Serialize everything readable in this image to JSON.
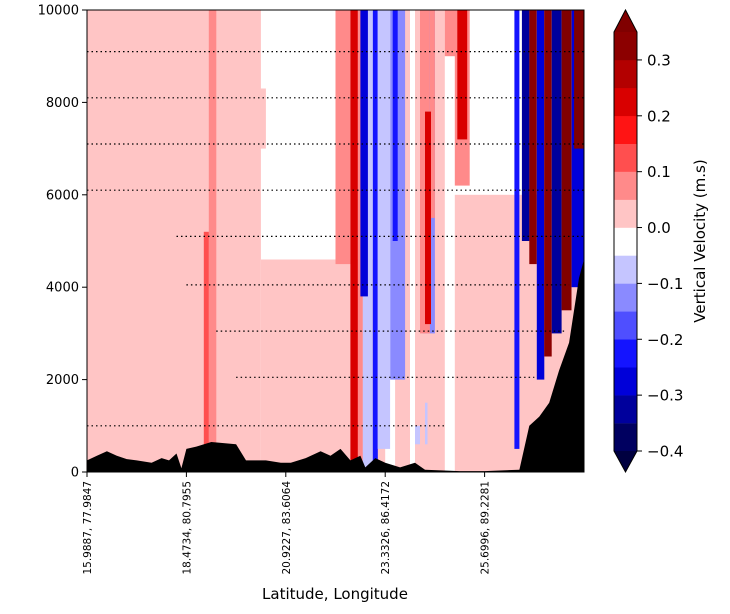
{
  "chart_data": {
    "type": "heatmap",
    "title": "",
    "xlabel": "Latitude, Longitude",
    "ylabel": "",
    "ylim": [
      0,
      10000
    ],
    "y_ticks": [
      "0",
      "2000",
      "4000",
      "6000",
      "8000",
      "10000"
    ],
    "y_tick_values": [
      0,
      2000,
      4000,
      6000,
      8000,
      10000
    ],
    "x_ticks": [
      "15.9887, 77.9847",
      "18.4734, 80.7955",
      "20.9227, 83.6064",
      "23.3326, 86.4172",
      "25.6996, 89.2281"
    ],
    "x_tick_fractions": [
      0.0,
      0.2,
      0.4,
      0.6,
      0.8
    ],
    "colorbar": {
      "label": "Vertical Velocity (m.s)",
      "extend": "both",
      "levels": [
        -0.4,
        -0.35,
        -0.3,
        -0.25,
        -0.2,
        -0.15,
        -0.1,
        -0.05,
        0.0,
        0.05,
        0.1,
        0.15,
        0.2,
        0.25,
        0.3,
        0.35
      ],
      "ticks": [
        "0.3",
        "0.2",
        "0.1",
        "0.0",
        "−0.1",
        "−0.2",
        "−0.3",
        "−0.4"
      ],
      "tick_values": [
        0.3,
        0.2,
        0.1,
        0.0,
        -0.1,
        -0.2,
        -0.3,
        -0.4
      ],
      "colors": [
        "#000060",
        "#00009c",
        "#0000d9",
        "#1414ff",
        "#4f4fff",
        "#8a8aff",
        "#c5c5ff",
        "#ffffff",
        "#ffc5c5",
        "#ff8a8a",
        "#ff4f4f",
        "#ff1414",
        "#d90000",
        "#b30000",
        "#8c0000"
      ],
      "under_color": "#000040",
      "over_color": "#800000"
    },
    "background_value": 0.0,
    "field_features": [
      {
        "x_frac": 0.0,
        "x_end_frac": 0.35,
        "y_bottom": 0,
        "y_top": 10000,
        "value": 0.03
      },
      {
        "x_frac": 0.35,
        "x_end_frac": 0.6,
        "y_bottom": 0,
        "y_top": 4600,
        "value": 0.03
      },
      {
        "x_frac": 0.0,
        "x_end_frac": 0.36,
        "y_bottom": 7000,
        "y_top": 8300,
        "value": 0.03
      },
      {
        "x_frac": 0.74,
        "x_end_frac": 1.0,
        "y_bottom": 0,
        "y_top": 6000,
        "value": 0.03
      },
      {
        "x_frac": 0.19,
        "x_end_frac": 0.22,
        "y_bottom": 0,
        "y_top": 10000,
        "value": 0.03
      },
      {
        "x_frac": 0.245,
        "x_end_frac": 0.26,
        "y_bottom": 0,
        "y_top": 10000,
        "value": 0.06
      },
      {
        "x_frac": 0.62,
        "x_end_frac": 0.65,
        "y_bottom": 0,
        "y_top": 10000,
        "value": 0.03
      },
      {
        "x_frac": 0.66,
        "x_end_frac": 0.72,
        "y_bottom": 0,
        "y_top": 10000,
        "value": 0.03
      },
      {
        "x_frac": 0.235,
        "x_end_frac": 0.245,
        "y_bottom": 0,
        "y_top": 5200,
        "value": 0.13
      },
      {
        "x_frac": 0.5,
        "x_end_frac": 0.53,
        "y_bottom": 4500,
        "y_top": 10000,
        "value": 0.08
      },
      {
        "x_frac": 0.53,
        "x_end_frac": 0.545,
        "y_bottom": 0,
        "y_top": 10000,
        "value": 0.22
      },
      {
        "x_frac": 0.545,
        "x_end_frac": 0.555,
        "y_bottom": 0,
        "y_top": 10000,
        "value": 0.08
      },
      {
        "x_frac": 0.555,
        "x_end_frac": 0.575,
        "y_bottom": 0,
        "y_top": 10000,
        "value": -0.08
      },
      {
        "x_frac": 0.575,
        "x_end_frac": 0.585,
        "y_bottom": 0,
        "y_top": 10000,
        "value": -0.22
      },
      {
        "x_frac": 0.585,
        "x_end_frac": 0.61,
        "y_bottom": 500,
        "y_top": 10000,
        "value": -0.08
      },
      {
        "x_frac": 0.61,
        "x_end_frac": 0.64,
        "y_bottom": 2000,
        "y_top": 10000,
        "value": -0.12
      },
      {
        "x_frac": 0.55,
        "x_end_frac": 0.565,
        "y_bottom": 3800,
        "y_top": 10000,
        "value": -0.3
      },
      {
        "x_frac": 0.615,
        "x_end_frac": 0.625,
        "y_bottom": 5000,
        "y_top": 10000,
        "value": -0.25
      },
      {
        "x_frac": 0.675,
        "x_end_frac": 0.7,
        "y_bottom": 3000,
        "y_top": 10000,
        "value": -0.13
      },
      {
        "x_frac": 0.68,
        "x_end_frac": 0.685,
        "y_bottom": 600,
        "y_top": 1500,
        "value": -0.08
      },
      {
        "x_frac": 0.66,
        "x_end_frac": 0.67,
        "y_bottom": 600,
        "y_top": 1000,
        "value": -0.08
      },
      {
        "x_frac": 0.69,
        "x_end_frac": 0.7,
        "y_bottom": 5500,
        "y_top": 10000,
        "value": 0.08
      },
      {
        "x_frac": 0.72,
        "x_end_frac": 0.75,
        "y_bottom": 9000,
        "y_top": 10000,
        "value": 0.08
      },
      {
        "x_frac": 0.67,
        "x_end_frac": 0.69,
        "y_bottom": 3000,
        "y_top": 10000,
        "value": 0.08
      },
      {
        "x_frac": 0.68,
        "x_end_frac": 0.692,
        "y_bottom": 3200,
        "y_top": 7800,
        "value": 0.22
      },
      {
        "x_frac": 0.74,
        "x_end_frac": 0.77,
        "y_bottom": 6200,
        "y_top": 10000,
        "value": 0.08
      },
      {
        "x_frac": 0.745,
        "x_end_frac": 0.765,
        "y_bottom": 7200,
        "y_top": 10000,
        "value": 0.22
      },
      {
        "x_frac": 0.86,
        "x_end_frac": 0.87,
        "y_bottom": 500,
        "y_top": 10000,
        "value": -0.22
      },
      {
        "x_frac": 0.875,
        "x_end_frac": 0.89,
        "y_bottom": 5000,
        "y_top": 10000,
        "value": -0.35
      },
      {
        "x_frac": 0.89,
        "x_end_frac": 0.905,
        "y_bottom": 4500,
        "y_top": 10000,
        "value": 0.3
      },
      {
        "x_frac": 0.905,
        "x_end_frac": 0.92,
        "y_bottom": 2000,
        "y_top": 10000,
        "value": -0.3
      },
      {
        "x_frac": 0.92,
        "x_end_frac": 0.935,
        "y_bottom": 2500,
        "y_top": 10000,
        "value": 0.3
      },
      {
        "x_frac": 0.935,
        "x_end_frac": 0.955,
        "y_bottom": 3000,
        "y_top": 10000,
        "value": -0.35
      },
      {
        "x_frac": 0.955,
        "x_end_frac": 0.975,
        "y_bottom": 3500,
        "y_top": 10000,
        "value": 0.35
      },
      {
        "x_frac": 0.975,
        "x_end_frac": 1.0,
        "y_bottom": 4000,
        "y_top": 10000,
        "value": -0.3
      },
      {
        "x_frac": 0.98,
        "x_end_frac": 1.0,
        "y_bottom": 7000,
        "y_top": 10000,
        "value": 0.35
      }
    ],
    "terrain": [
      {
        "x_frac": 0.0,
        "elev": 250
      },
      {
        "x_frac": 0.02,
        "elev": 350
      },
      {
        "x_frac": 0.04,
        "elev": 450
      },
      {
        "x_frac": 0.06,
        "elev": 350
      },
      {
        "x_frac": 0.08,
        "elev": 280
      },
      {
        "x_frac": 0.1,
        "elev": 250
      },
      {
        "x_frac": 0.13,
        "elev": 200
      },
      {
        "x_frac": 0.15,
        "elev": 300
      },
      {
        "x_frac": 0.165,
        "elev": 250
      },
      {
        "x_frac": 0.18,
        "elev": 400
      },
      {
        "x_frac": 0.19,
        "elev": 80
      },
      {
        "x_frac": 0.2,
        "elev": 500
      },
      {
        "x_frac": 0.22,
        "elev": 550
      },
      {
        "x_frac": 0.25,
        "elev": 650
      },
      {
        "x_frac": 0.3,
        "elev": 600
      },
      {
        "x_frac": 0.32,
        "elev": 250
      },
      {
        "x_frac": 0.36,
        "elev": 250
      },
      {
        "x_frac": 0.39,
        "elev": 200
      },
      {
        "x_frac": 0.41,
        "elev": 200
      },
      {
        "x_frac": 0.44,
        "elev": 300
      },
      {
        "x_frac": 0.47,
        "elev": 450
      },
      {
        "x_frac": 0.49,
        "elev": 350
      },
      {
        "x_frac": 0.51,
        "elev": 500
      },
      {
        "x_frac": 0.53,
        "elev": 250
      },
      {
        "x_frac": 0.55,
        "elev": 350
      },
      {
        "x_frac": 0.56,
        "elev": 100
      },
      {
        "x_frac": 0.58,
        "elev": 300
      },
      {
        "x_frac": 0.6,
        "elev": 200
      },
      {
        "x_frac": 0.63,
        "elev": 100
      },
      {
        "x_frac": 0.66,
        "elev": 200
      },
      {
        "x_frac": 0.68,
        "elev": 50
      },
      {
        "x_frac": 0.75,
        "elev": 20
      },
      {
        "x_frac": 0.8,
        "elev": 20
      },
      {
        "x_frac": 0.87,
        "elev": 50
      },
      {
        "x_frac": 0.89,
        "elev": 1000
      },
      {
        "x_frac": 0.91,
        "elev": 1200
      },
      {
        "x_frac": 0.93,
        "elev": 1500
      },
      {
        "x_frac": 0.95,
        "elev": 2200
      },
      {
        "x_frac": 0.97,
        "elev": 2800
      },
      {
        "x_frac": 0.99,
        "elev": 4200
      },
      {
        "x_frac": 1.0,
        "elev": 4600
      }
    ],
    "wind_rows": [
      {
        "y": 9100,
        "x_start": 0.0,
        "x_end": 1.0
      },
      {
        "y": 8100,
        "x_start": 0.0,
        "x_end": 1.0
      },
      {
        "y": 7100,
        "x_start": 0.0,
        "x_end": 1.0
      },
      {
        "y": 6100,
        "x_start": 0.0,
        "x_end": 1.0
      },
      {
        "y": 5100,
        "x_start": 0.18,
        "x_end": 1.0
      },
      {
        "y": 4050,
        "x_start": 0.2,
        "x_end": 0.97
      },
      {
        "y": 3050,
        "x_start": 0.26,
        "x_end": 0.96
      },
      {
        "y": 2050,
        "x_start": 0.3,
        "x_end": 0.9
      },
      {
        "y": 1000,
        "x_start": 0.0,
        "x_end": 0.72
      }
    ]
  }
}
